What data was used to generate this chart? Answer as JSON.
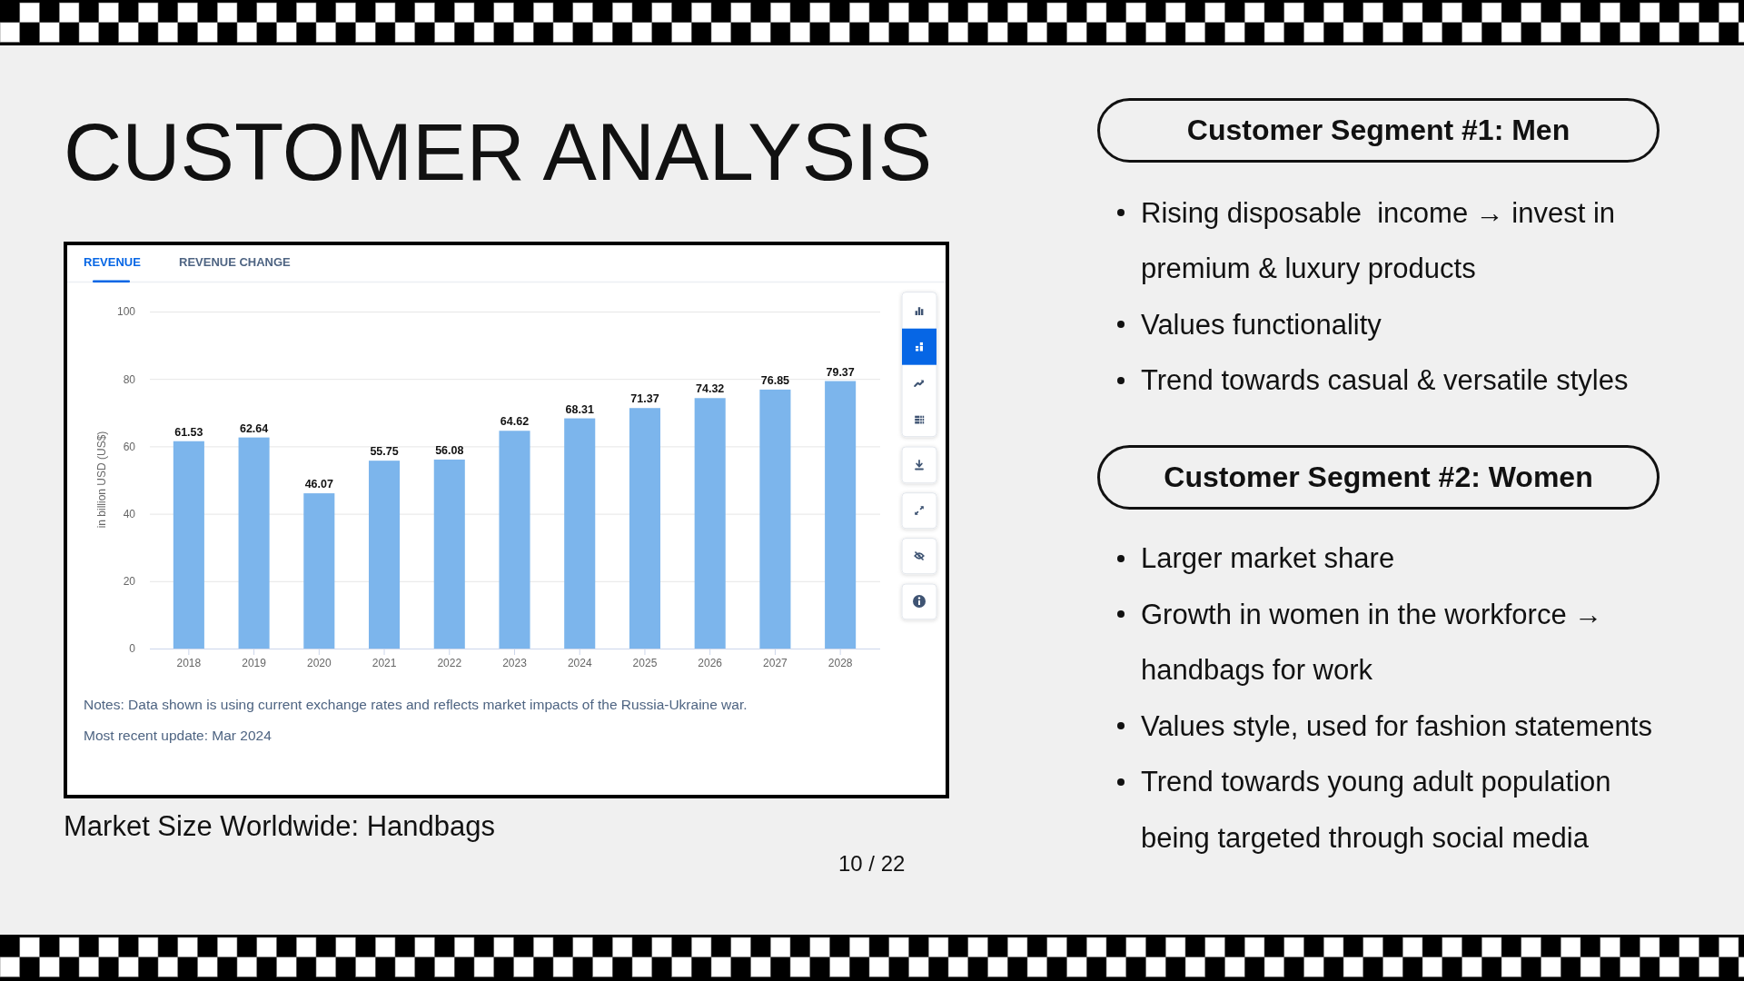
{
  "chart_data": {
    "type": "bar",
    "title": "CUSTOMER ANALYSIS",
    "subtitle": "Market Size Worldwide: Handbags",
    "ylabel": "in billion USD (US$)",
    "categories": [
      "2018",
      "2019",
      "2020",
      "2021",
      "2022",
      "2023",
      "2024",
      "2025",
      "2026",
      "2027",
      "2028"
    ],
    "values": [
      61.53,
      62.64,
      46.07,
      55.75,
      56.08,
      64.62,
      68.31,
      71.37,
      74.32,
      76.85,
      79.37
    ],
    "color": "#7cb5ec",
    "ylim": [
      0,
      100
    ],
    "yticks": [
      0,
      20,
      40,
      60,
      80,
      100
    ],
    "grid": "y",
    "data_labels": true,
    "annotations": [
      "REVENUE",
      "REVENUE CHANGE",
      "Notes: Data shown is using current exchange rates and reflects market impacts of the Russia-Ukraine war.",
      "Most recent update: Mar 2024",
      "10 / 22",
      "Customer Segment #1: Men",
      "Rising disposable  income → invest in premium & luxury products",
      "Values functionality",
      "Trend towards casual & versatile styles",
      "Customer Segment #2: Women",
      "Larger market share",
      "Growth in women in the workforce → handbags for work",
      "Values style, used for fashion statements",
      "Trend towards young adult population being targeted through social media"
    ]
  }
}
